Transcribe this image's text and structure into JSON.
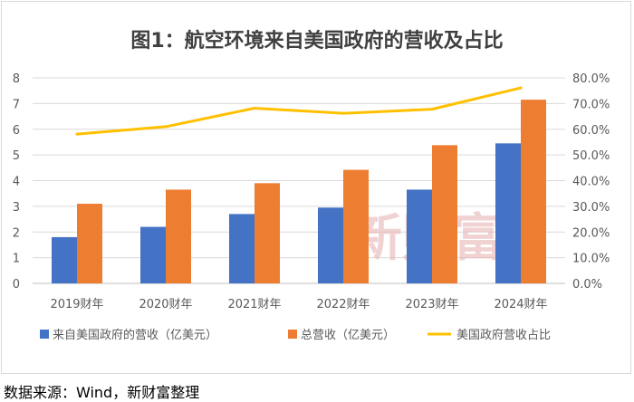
{
  "chart_data": {
    "type": "bar",
    "title": "图1：航空环境来自美国政府的营收及占比",
    "categories": [
      "2019财年",
      "2020财年",
      "2021财年",
      "2022财年",
      "2023财年",
      "2024财年"
    ],
    "series": [
      {
        "name": "来自美国政府的营收（亿美元）",
        "type": "bar",
        "axis": "left",
        "color": "#4472c4",
        "values": [
          1.8,
          2.2,
          2.7,
          2.95,
          3.65,
          5.45
        ]
      },
      {
        "name": "总营收（亿美元）",
        "type": "bar",
        "axis": "left",
        "color": "#ed7d31",
        "values": [
          3.1,
          3.65,
          3.9,
          4.42,
          5.38,
          7.15
        ]
      },
      {
        "name": "美国政府营收占比",
        "type": "line",
        "axis": "right",
        "color": "#ffc000",
        "values": [
          58.1,
          61.0,
          68.2,
          66.2,
          67.8,
          76.1
        ]
      }
    ],
    "ylim": [
      0,
      8
    ],
    "yticks": [
      "0",
      "1",
      "2",
      "3",
      "4",
      "5",
      "6",
      "7",
      "8"
    ],
    "y2lim": [
      0,
      80
    ],
    "y2ticks": [
      "0.0%",
      "10.0%",
      "20.0%",
      "30.0%",
      "40.0%",
      "50.0%",
      "60.0%",
      "70.0%",
      "80.0%"
    ],
    "grid": true,
    "legend_position": "bottom",
    "watermark": "新财富"
  },
  "source_note": "数据来源：Wind，新财富整理"
}
